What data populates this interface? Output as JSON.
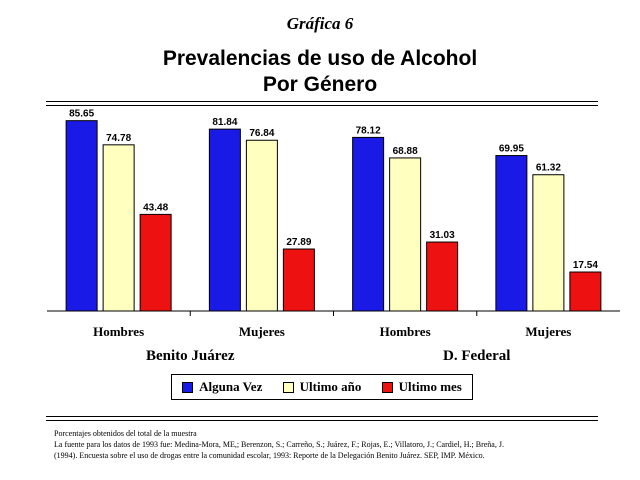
{
  "header": {
    "figure_label": "Gráfica 6",
    "title_line1": "Prevalencias de uso de Alcohol",
    "title_line2": "Por Género"
  },
  "colors": {
    "Alguna Vez": "#1a1ae6",
    "Ultimo año": "#ffffc0",
    "Ultimo mes": "#ee1111"
  },
  "chart_data": {
    "type": "bar",
    "title": "Prevalencias de uso de Alcohol Por Género",
    "categories": [
      "Hombres",
      "Mujeres",
      "Hombres",
      "Mujeres"
    ],
    "groups": [
      "Benito Juárez",
      "D. Federal"
    ],
    "series": [
      {
        "name": "Alguna Vez",
        "values": [
          85.65,
          81.84,
          78.12,
          69.95
        ]
      },
      {
        "name": "Ultimo año",
        "values": [
          74.78,
          76.84,
          68.88,
          61.32
        ]
      },
      {
        "name": "Ultimo mes",
        "values": [
          43.48,
          27.89,
          31.03,
          17.54
        ]
      }
    ],
    "ylim": [
      0,
      90
    ],
    "grid": false,
    "legend_position": "bottom"
  },
  "legend": {
    "items": [
      "Alguna Vez",
      "Ultimo año",
      "Ultimo mes"
    ]
  },
  "note": {
    "line1": "Porcentajes obtenidos del total de la muestra",
    "line2": "La fuente para los datos de 1993 fue: Medina-Mora, ME,; Berenzon, S.; Carreño, S.; Juárez, F.; Rojas, E.; Villatoro, J.; Cardiel, H.; Breña, J.",
    "line3": "(1994). Encuesta sobre el uso de drogas entre la comunidad escolar, 1993: Reporte de la Delegación Benito Juárez. SEP, IMP. México."
  }
}
